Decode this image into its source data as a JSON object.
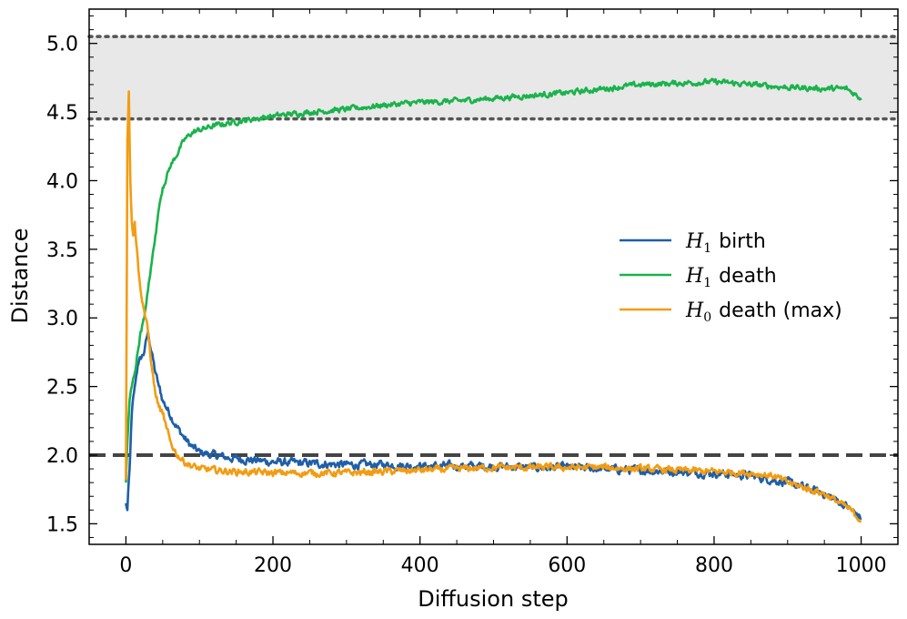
{
  "chart_data": {
    "type": "line",
    "xlabel": "Diffusion step",
    "ylabel": "Distance",
    "xlim": [
      -50,
      1050
    ],
    "ylim": [
      1.35,
      5.25
    ],
    "xticks": [
      0,
      200,
      400,
      600,
      800,
      1000
    ],
    "yticks": [
      1.5,
      2.0,
      2.5,
      3.0,
      3.5,
      4.0,
      4.5,
      5.0
    ],
    "xtick_labels": [
      "0",
      "200",
      "400",
      "600",
      "800",
      "1000"
    ],
    "ytick_labels": [
      "1.5",
      "2.0",
      "2.5",
      "3.0",
      "3.5",
      "4.0",
      "4.5",
      "5.0"
    ],
    "band": {
      "y_low": 4.45,
      "y_high": 5.05,
      "color": "#e8e8e8",
      "edge_color": "#555555"
    },
    "reference_line": {
      "y": 2.0,
      "color": "#444444",
      "style": "dashed"
    },
    "legend_position": "center-right",
    "series": [
      {
        "name": "H1 birth",
        "legend_symbol": "H",
        "legend_subscript": "1",
        "legend_text": "birth",
        "color": "#1f5fa8",
        "noise": 0.03,
        "x": [
          0,
          2,
          5,
          8,
          12,
          16,
          20,
          25,
          30,
          35,
          40,
          45,
          50,
          60,
          70,
          80,
          90,
          100,
          120,
          140,
          160,
          180,
          200,
          250,
          300,
          350,
          400,
          450,
          500,
          550,
          600,
          650,
          700,
          750,
          800,
          850,
          900,
          950,
          980,
          1000
        ],
        "y": [
          1.65,
          1.6,
          1.9,
          2.3,
          2.5,
          2.65,
          2.7,
          2.75,
          2.9,
          2.75,
          2.6,
          2.5,
          2.4,
          2.3,
          2.2,
          2.12,
          2.06,
          2.02,
          2.0,
          1.98,
          1.97,
          1.96,
          1.95,
          1.94,
          1.93,
          1.93,
          1.92,
          1.92,
          1.92,
          1.91,
          1.91,
          1.9,
          1.89,
          1.88,
          1.87,
          1.85,
          1.8,
          1.72,
          1.63,
          1.54
        ]
      },
      {
        "name": "H1 death",
        "legend_symbol": "H",
        "legend_subscript": "1",
        "legend_text": "death",
        "color": "#1ab34c",
        "noise": 0.02,
        "x": [
          0,
          2,
          5,
          8,
          12,
          16,
          20,
          25,
          30,
          35,
          40,
          45,
          50,
          60,
          70,
          80,
          90,
          100,
          120,
          150,
          200,
          250,
          300,
          350,
          400,
          450,
          500,
          550,
          600,
          650,
          700,
          750,
          800,
          850,
          900,
          950,
          980,
          1000
        ],
        "y": [
          1.8,
          2.1,
          2.4,
          2.5,
          2.6,
          2.75,
          2.9,
          3.0,
          3.2,
          3.4,
          3.6,
          3.8,
          3.95,
          4.1,
          4.2,
          4.3,
          4.35,
          4.37,
          4.4,
          4.43,
          4.47,
          4.5,
          4.52,
          4.55,
          4.57,
          4.58,
          4.6,
          4.62,
          4.64,
          4.67,
          4.7,
          4.71,
          4.72,
          4.7,
          4.68,
          4.67,
          4.67,
          4.6
        ]
      },
      {
        "name": "H0 death (max)",
        "legend_symbol": "H",
        "legend_subscript": "0",
        "legend_text": "death (max)",
        "color": "#f39c12",
        "noise": 0.025,
        "x": [
          0,
          2,
          4,
          6,
          8,
          10,
          12,
          15,
          18,
          20,
          25,
          30,
          35,
          40,
          45,
          50,
          55,
          60,
          70,
          80,
          90,
          100,
          120,
          150,
          200,
          250,
          300,
          350,
          400,
          450,
          500,
          550,
          600,
          650,
          700,
          750,
          800,
          850,
          880,
          900,
          950,
          980,
          1000
        ],
        "y": [
          1.82,
          4.3,
          4.65,
          4.0,
          3.7,
          3.6,
          3.7,
          3.5,
          3.3,
          3.2,
          3.05,
          2.9,
          2.65,
          2.45,
          2.35,
          2.3,
          2.2,
          2.1,
          2.0,
          1.95,
          1.92,
          1.9,
          1.89,
          1.88,
          1.87,
          1.87,
          1.87,
          1.88,
          1.89,
          1.9,
          1.91,
          1.91,
          1.91,
          1.91,
          1.9,
          1.89,
          1.88,
          1.87,
          1.85,
          1.8,
          1.72,
          1.62,
          1.53
        ]
      }
    ]
  }
}
